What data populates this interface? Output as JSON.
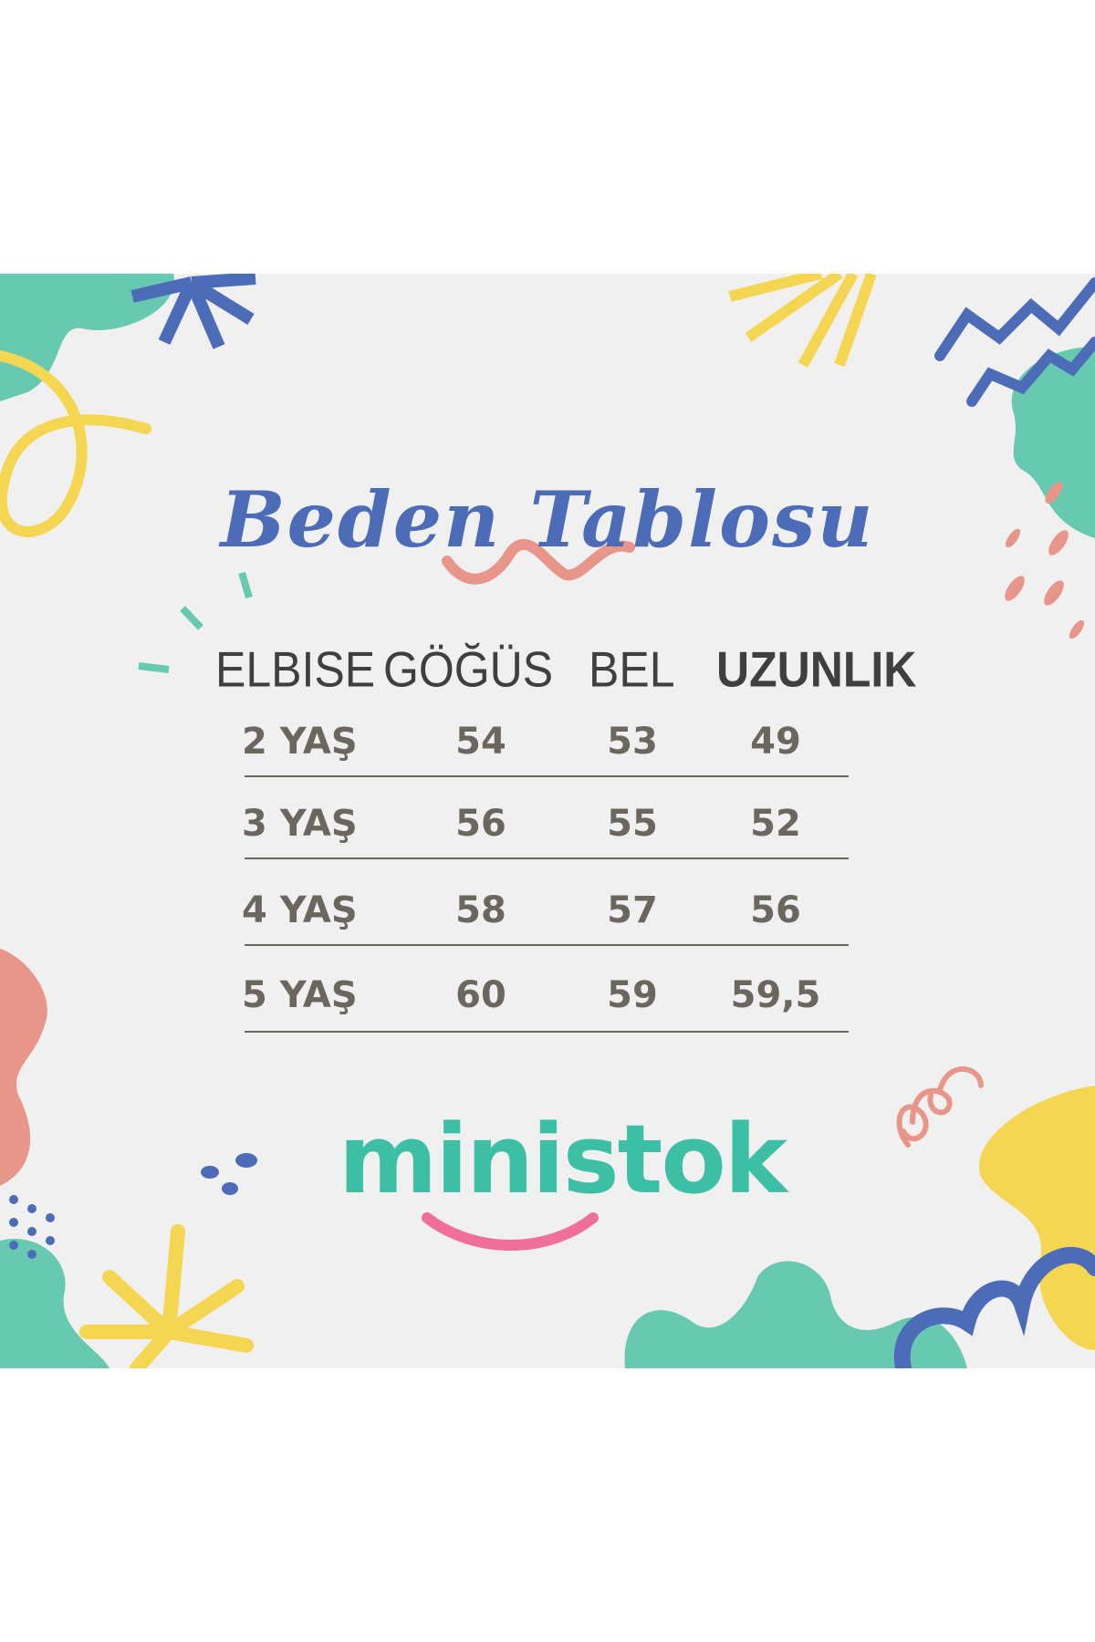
{
  "title": "Beden Tablosu",
  "table": {
    "headers": [
      "ELBISE",
      "GÖĞÜS",
      "BEL",
      "UZUNLIK"
    ],
    "rows": [
      [
        "2 YAŞ",
        "54",
        "53",
        "49"
      ],
      [
        "3 YAŞ",
        "56",
        "55",
        "52"
      ],
      [
        "4 YAŞ",
        "58",
        "57",
        "56"
      ],
      [
        "5 YAŞ",
        "60",
        "59",
        "59,5"
      ]
    ]
  },
  "brand": "ministok",
  "colors": {
    "background": "#f0f0f0",
    "title": "#4d6cb8",
    "text": "#6b665e",
    "brand": "#3dbfa5",
    "smile": "#f06f9a",
    "teal": "#66c9b0",
    "yellow": "#f5d652",
    "blue": "#4d6cb8",
    "coral": "#e8968a"
  }
}
